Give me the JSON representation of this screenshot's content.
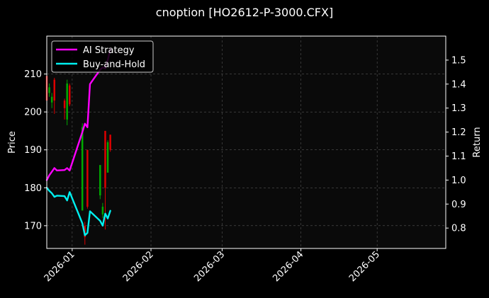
{
  "chart_data": {
    "type": "line",
    "title": "cnoption [HO2612-P-3000.CFX]",
    "xlabel": "",
    "ylabel": "Price",
    "y2label": "Return",
    "xlim": [
      "2025-12-22",
      "2026-05-28"
    ],
    "ylim": [
      164.0,
      220.0
    ],
    "y2lim": [
      0.715,
      1.6
    ],
    "grid": true,
    "legend_position": "top-left",
    "x_ticks": [
      "2026-01",
      "2026-02",
      "2026-03",
      "2026-04",
      "2026-05"
    ],
    "y_ticks": [
      170,
      180,
      190,
      200,
      210
    ],
    "y2_ticks": [
      0.8,
      0.9,
      1.0,
      1.1,
      1.2,
      1.3,
      1.4,
      1.5
    ],
    "colors": {
      "up": "#00aa00",
      "down": "#dd0000",
      "ai": "#ff00ff",
      "bh": "#00f0f0"
    },
    "candles": [
      {
        "date": "2025-12-22",
        "open": 209.5,
        "close": 203.0,
        "high": 212.0,
        "low": 201.5
      },
      {
        "date": "2025-12-23",
        "open": 205.0,
        "close": 206.5,
        "high": 207.5,
        "low": 204.0
      },
      {
        "date": "2025-12-24",
        "open": 202.5,
        "close": 204.0,
        "high": 205.0,
        "low": 201.0
      },
      {
        "date": "2025-12-25",
        "open": 208.5,
        "close": 203.0,
        "high": 209.0,
        "low": 199.5
      },
      {
        "date": "2025-12-29",
        "open": 203.0,
        "close": 201.0,
        "high": 203.5,
        "low": 198.0
      },
      {
        "date": "2025-12-30",
        "open": 198.0,
        "close": 207.5,
        "high": 208.5,
        "low": 196.5
      },
      {
        "date": "2025-12-31",
        "open": 207.0,
        "close": 202.0,
        "high": 207.5,
        "low": 201.5
      },
      {
        "date": "2026-01-05",
        "open": 174.0,
        "close": 196.0,
        "high": 197.0,
        "low": 174.0
      },
      {
        "date": "2026-01-06",
        "open": 170.0,
        "close": 167.0,
        "high": 171.0,
        "low": 165.0
      },
      {
        "date": "2026-01-07",
        "open": 190.0,
        "close": 175.0,
        "high": 190.0,
        "low": 174.5
      },
      {
        "date": "2026-01-12",
        "open": 178.0,
        "close": 186.0,
        "high": 186.0,
        "low": 177.0
      },
      {
        "date": "2026-01-13",
        "open": 173.0,
        "close": 175.0,
        "high": 176.0,
        "low": 172.0
      },
      {
        "date": "2026-01-14",
        "open": 195.0,
        "close": 180.0,
        "high": 195.0,
        "low": 169.0
      },
      {
        "date": "2026-01-15",
        "open": 184.0,
        "close": 192.0,
        "high": 192.5,
        "low": 184.0
      },
      {
        "date": "2026-01-16",
        "open": 194.0,
        "close": 190.0,
        "high": 194.0,
        "low": 189.5
      }
    ],
    "series": [
      {
        "name": "AI Strategy",
        "axis": "right",
        "color": "#ff00ff",
        "x": [
          "2025-12-22",
          "2025-12-23",
          "2025-12-24",
          "2025-12-25",
          "2025-12-26",
          "2025-12-29",
          "2025-12-30",
          "2025-12-31",
          "2026-01-05",
          "2026-01-06",
          "2026-01-07",
          "2026-01-08",
          "2026-01-12",
          "2026-01-13",
          "2026-01-14",
          "2026-01-15",
          "2026-01-16"
        ],
        "values": [
          1.0,
          1.02,
          1.035,
          1.05,
          1.04,
          1.042,
          1.05,
          1.04,
          1.2,
          1.235,
          1.22,
          1.4,
          1.46,
          1.47,
          1.465,
          1.5,
          1.545
        ]
      },
      {
        "name": "Buy-and-Hold",
        "axis": "right",
        "color": "#00f0f0",
        "x": [
          "2025-12-22",
          "2025-12-23",
          "2025-12-24",
          "2025-12-25",
          "2025-12-26",
          "2025-12-29",
          "2025-12-30",
          "2025-12-31",
          "2026-01-05",
          "2026-01-06",
          "2026-01-07",
          "2026-01-08",
          "2026-01-12",
          "2026-01-13",
          "2026-01-14",
          "2026-01-15",
          "2026-01-16"
        ],
        "values": [
          0.968,
          0.955,
          0.945,
          0.93,
          0.935,
          0.933,
          0.915,
          0.95,
          0.82,
          0.77,
          0.78,
          0.87,
          0.83,
          0.81,
          0.86,
          0.84,
          0.872
        ]
      }
    ]
  }
}
